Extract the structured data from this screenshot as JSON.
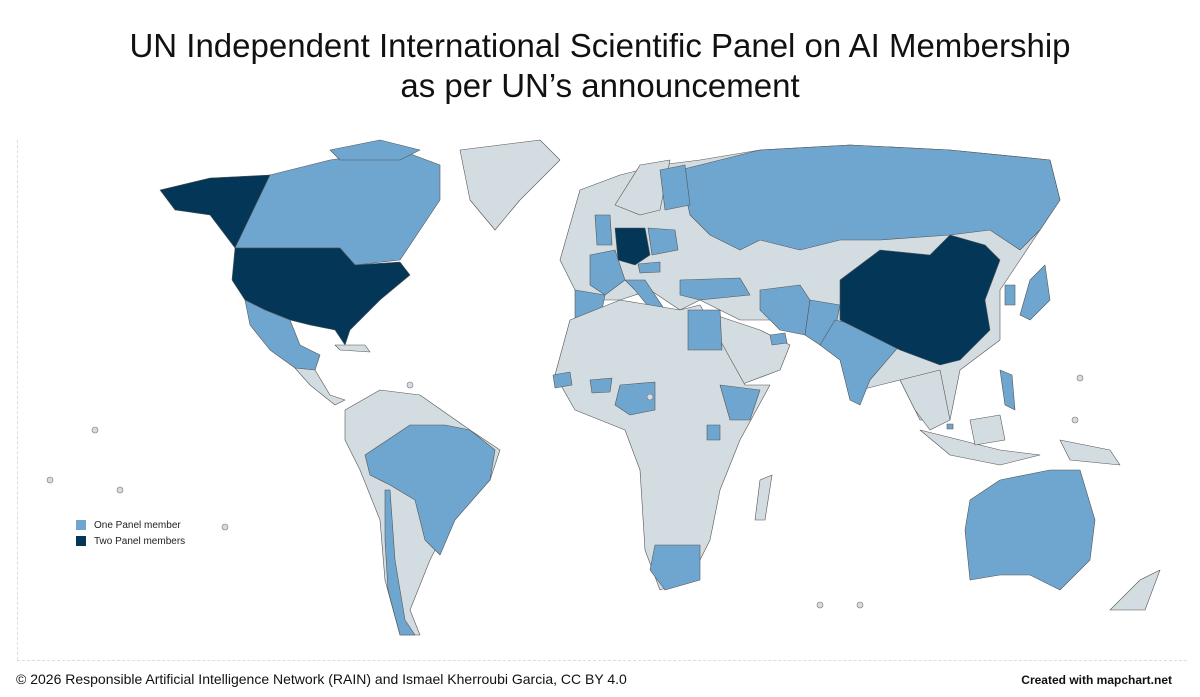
{
  "title": {
    "line1": "UN Independent International Scientific Panel on AI Membership",
    "line2": "as per UN’s announcement"
  },
  "legend": {
    "items": [
      {
        "label": "One Panel member",
        "color": "#6fa6cf"
      },
      {
        "label": "Two Panel members",
        "color": "#043657"
      }
    ]
  },
  "colors": {
    "no_member": "#d3dce1",
    "one_member": "#6fa6cf",
    "two_members": "#043657",
    "border": "#555555"
  },
  "map_data": {
    "two_members": [
      "United States",
      "Germany",
      "China"
    ],
    "one_member": [
      "Canada",
      "Mexico",
      "Brazil",
      "Chile",
      "United Kingdom",
      "France",
      "Spain",
      "Italy",
      "Poland",
      "Austria",
      "Finland",
      "Russia",
      "Turkey",
      "Iran",
      "Pakistan",
      "India",
      "United Arab Emirates",
      "Egypt",
      "Senegal",
      "Burkina Faso",
      "Nigeria",
      "Ethiopia",
      "Uganda",
      "South Africa",
      "Japan",
      "South Korea",
      "Philippines",
      "Singapore",
      "Australia"
    ]
  },
  "footer": {
    "credit": "© 2026 Responsible Artificial Intelligence Network (RAIN) and Ismael Kherroubi Garcia, CC BY 4.0",
    "created_with": "Created with mapchart.net"
  }
}
